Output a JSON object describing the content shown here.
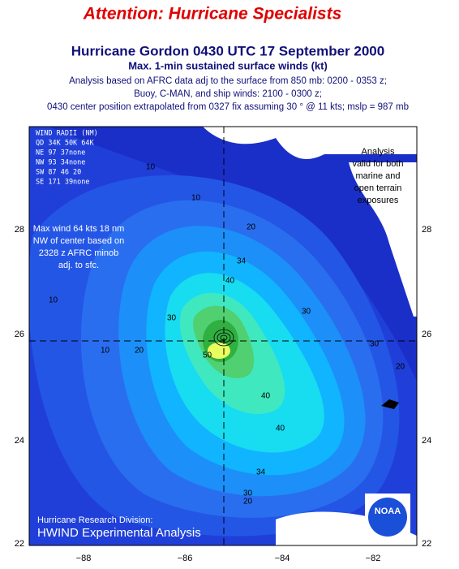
{
  "header": {
    "attention": "Attention:  Hurricane Specialists",
    "title": "Hurricane Gordon 0430 UTC 17 September 2000",
    "subtitle": "Max. 1-min sustained surface winds (kt)",
    "lines": [
      "Analysis based on AFRC data adj to the surface from 850 mb: 0200 - 0353 z;",
      "Buoy, C-MAN, and ship winds: 2100 - 0300 z;",
      "0430 center position extrapolated from 0327 fix assuming 30 ° @ 11 kts; mslp = 987 mb"
    ]
  },
  "wind_radii": {
    "title": "WIND RADII (NM)",
    "header": "QD 34K 50K 64K",
    "rows": [
      "NE  97  37none",
      "NW  93  34none",
      "SW  87  46  20",
      "SE 171  39none"
    ]
  },
  "annotations": {
    "max_wind": [
      "Max wind 64 kts 18 nm",
      "NW of center based on",
      "2328 z AFRC minob",
      "adj. to sfc."
    ],
    "valid": [
      "Analysis",
      "valid for both",
      "marine and",
      "open terrain",
      "exposures"
    ],
    "division": "Hurricane Research Division:",
    "product": "HWIND Experimental Analysis",
    "logo": "NOAA"
  },
  "axes": {
    "lon_ticks": [
      "−88",
      "−86",
      "−84",
      "−82"
    ],
    "lat_ticks": [
      "22",
      "24",
      "26",
      "28"
    ]
  },
  "contour_labels": [
    "10",
    "10",
    "10",
    "10",
    "20",
    "20",
    "20",
    "20",
    "30",
    "30",
    "30",
    "30",
    "34",
    "34",
    "40",
    "40",
    "40",
    "50"
  ]
}
